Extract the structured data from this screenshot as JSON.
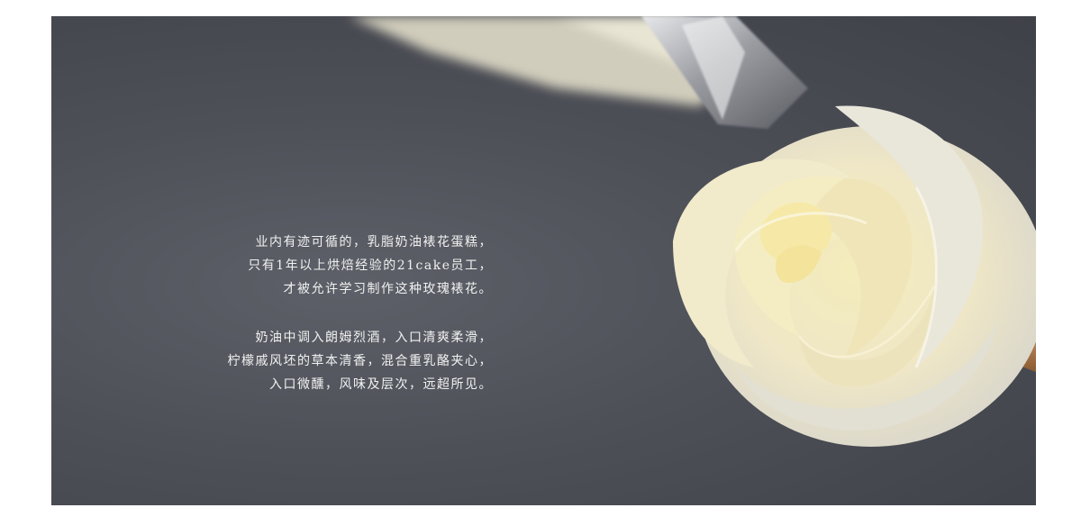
{
  "copy": {
    "paragraph_1": [
      "业内有迹可循的，乳脂奶油裱花蛋糕，",
      "只有1年以上烘焙经验的21cake员工，",
      "才被允许学习制作这种玫瑰裱花。"
    ],
    "paragraph_2": [
      "奶油中调入朗姆烈酒，入口清爽柔滑，",
      "柠檬戚风坯的草本清香，混合重乳酪夹心，",
      "入口微醺，风味及层次，远超所见。"
    ]
  },
  "colors": {
    "background": "#4e5058",
    "text": "#f1f1f1",
    "cream": "#f3edc8"
  }
}
